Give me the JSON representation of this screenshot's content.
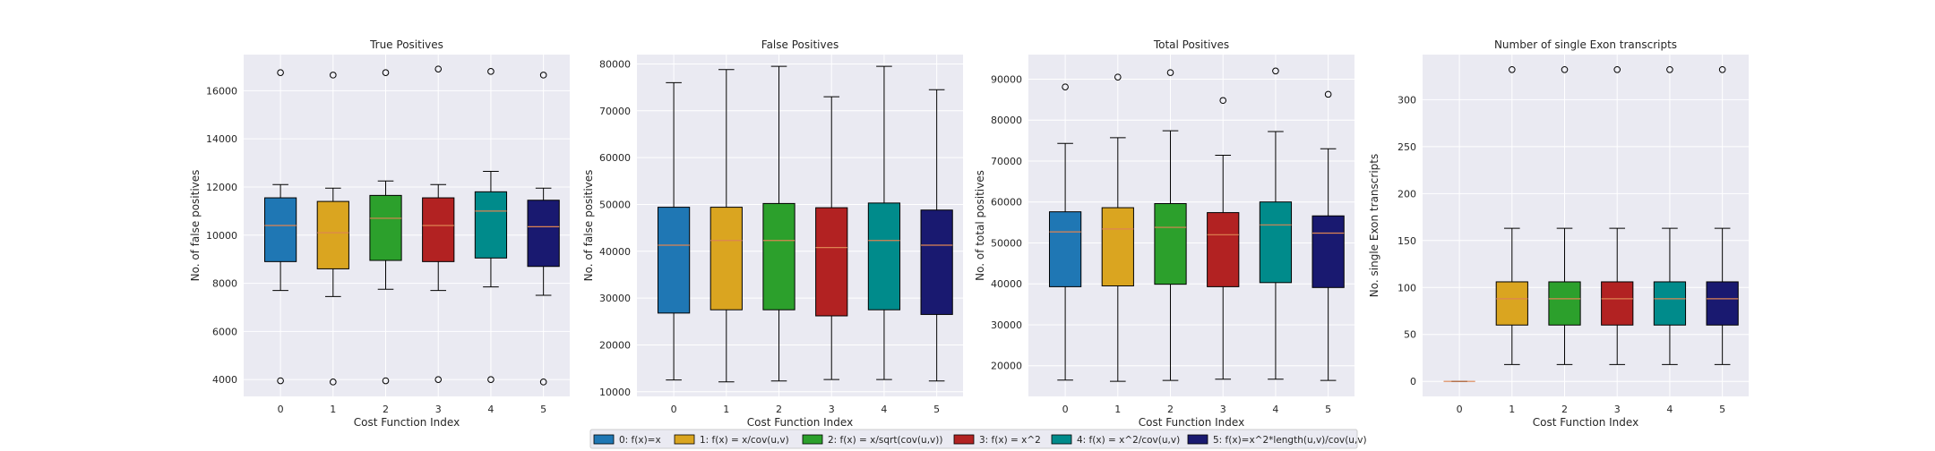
{
  "colors": {
    "panel_bg": "#eaeaf2",
    "grid": "#ffffff",
    "median": "#dd8452",
    "box_edge": "#000000",
    "series": [
      "#1f77b4",
      "#daa520",
      "#2ca02c",
      "#b22222",
      "#008b8b",
      "#191970"
    ]
  },
  "legend": {
    "placement": "bottom-center",
    "entries": [
      "0: f(x)=x",
      "1: f(x) = x/cov(u,v)",
      "2: f(x) = x/sqrt(cov(u,v))",
      "3: f(x) = x^2",
      "4: f(x) = x^2/cov(u,v)",
      "5: f(x)=x^2*length(u,v)/cov(u,v)"
    ]
  },
  "chart_data": [
    {
      "type": "box",
      "title": "True Positives",
      "xlabel": "Cost Function Index",
      "ylabel": "No. of false positives",
      "categories": [
        "0",
        "1",
        "2",
        "3",
        "4",
        "5"
      ],
      "ylim": [
        3300,
        17500
      ],
      "yticks": [
        4000,
        6000,
        8000,
        10000,
        12000,
        14000,
        16000
      ],
      "grid": true,
      "boxes": [
        {
          "whislo": 7700,
          "q1": 8900,
          "med": 10400,
          "q3": 11550,
          "whishi": 12100,
          "fliers": [
            16750,
            3950
          ]
        },
        {
          "whislo": 7450,
          "q1": 8600,
          "med": 10100,
          "q3": 11400,
          "whishi": 11950,
          "fliers": [
            16650,
            3900
          ]
        },
        {
          "whislo": 7750,
          "q1": 8950,
          "med": 10700,
          "q3": 11650,
          "whishi": 12250,
          "fliers": [
            16750,
            3950
          ]
        },
        {
          "whislo": 7700,
          "q1": 8900,
          "med": 10400,
          "q3": 11550,
          "whishi": 12100,
          "fliers": [
            16900,
            4000
          ]
        },
        {
          "whislo": 7850,
          "q1": 9050,
          "med": 11000,
          "q3": 11800,
          "whishi": 12650,
          "fliers": [
            16800,
            4000
          ]
        },
        {
          "whislo": 7500,
          "q1": 8700,
          "med": 10350,
          "q3": 11450,
          "whishi": 11950,
          "fliers": [
            16650,
            3900
          ]
        }
      ]
    },
    {
      "type": "box",
      "title": "False Positives",
      "xlabel": "Cost Function Index",
      "ylabel": "No. of false positives",
      "categories": [
        "0",
        "1",
        "2",
        "3",
        "4",
        "5"
      ],
      "ylim": [
        9000,
        82000
      ],
      "yticks": [
        10000,
        20000,
        30000,
        40000,
        50000,
        60000,
        70000,
        80000
      ],
      "grid": true,
      "boxes": [
        {
          "whislo": 12500,
          "q1": 26800,
          "med": 41300,
          "q3": 49400,
          "whishi": 76000,
          "fliers": []
        },
        {
          "whislo": 12100,
          "q1": 27500,
          "med": 42300,
          "q3": 49400,
          "whishi": 78800,
          "fliers": []
        },
        {
          "whislo": 12300,
          "q1": 27500,
          "med": 42300,
          "q3": 50200,
          "whishi": 79500,
          "fliers": []
        },
        {
          "whislo": 12600,
          "q1": 26200,
          "med": 40800,
          "q3": 49300,
          "whishi": 73000,
          "fliers": []
        },
        {
          "whislo": 12600,
          "q1": 27500,
          "med": 42300,
          "q3": 50300,
          "whishi": 79500,
          "fliers": []
        },
        {
          "whislo": 12300,
          "q1": 26500,
          "med": 41300,
          "q3": 48800,
          "whishi": 74500,
          "fliers": []
        }
      ]
    },
    {
      "type": "box",
      "title": "Total Positives",
      "xlabel": "Cost Function Index",
      "ylabel": "No. of total positives",
      "categories": [
        "0",
        "1",
        "2",
        "3",
        "4",
        "5"
      ],
      "ylim": [
        12500,
        96000
      ],
      "yticks": [
        20000,
        30000,
        40000,
        50000,
        60000,
        70000,
        80000,
        90000
      ],
      "grid": true,
      "boxes": [
        {
          "whislo": 16500,
          "q1": 39300,
          "med": 52700,
          "q3": 57600,
          "whishi": 74300,
          "fliers": [
            88100
          ]
        },
        {
          "whislo": 16200,
          "q1": 39500,
          "med": 53400,
          "q3": 58600,
          "whishi": 75700,
          "fliers": [
            90500
          ]
        },
        {
          "whislo": 16400,
          "q1": 39900,
          "med": 53800,
          "q3": 59600,
          "whishi": 77400,
          "fliers": [
            91600
          ]
        },
        {
          "whislo": 16700,
          "q1": 39300,
          "med": 52000,
          "q3": 57400,
          "whishi": 71400,
          "fliers": [
            84800
          ]
        },
        {
          "whislo": 16700,
          "q1": 40300,
          "med": 54400,
          "q3": 60000,
          "whishi": 77200,
          "fliers": [
            92000
          ]
        },
        {
          "whislo": 16400,
          "q1": 39100,
          "med": 52400,
          "q3": 56600,
          "whishi": 73000,
          "fliers": [
            86300
          ]
        }
      ]
    },
    {
      "type": "box",
      "title": "Number of single Exon transcripts",
      "xlabel": "Cost Function Index",
      "ylabel": "No. single Exon transcripts",
      "categories": [
        "0",
        "1",
        "2",
        "3",
        "4",
        "5"
      ],
      "ylim": [
        -16,
        348
      ],
      "yticks": [
        0,
        50,
        100,
        150,
        200,
        250,
        300
      ],
      "grid": true,
      "boxes": [
        {
          "whislo": 0,
          "q1": 0,
          "med": 0,
          "q3": 0,
          "whishi": 0,
          "fliers": []
        },
        {
          "whislo": 18,
          "q1": 60,
          "med": 88,
          "q3": 106,
          "whishi": 163,
          "fliers": [
            332
          ]
        },
        {
          "whislo": 18,
          "q1": 60,
          "med": 88,
          "q3": 106,
          "whishi": 163,
          "fliers": [
            332
          ]
        },
        {
          "whislo": 18,
          "q1": 60,
          "med": 88,
          "q3": 106,
          "whishi": 163,
          "fliers": [
            332
          ]
        },
        {
          "whislo": 18,
          "q1": 60,
          "med": 88,
          "q3": 106,
          "whishi": 163,
          "fliers": [
            332
          ]
        },
        {
          "whislo": 18,
          "q1": 60,
          "med": 88,
          "q3": 106,
          "whishi": 163,
          "fliers": [
            332
          ]
        }
      ]
    }
  ]
}
